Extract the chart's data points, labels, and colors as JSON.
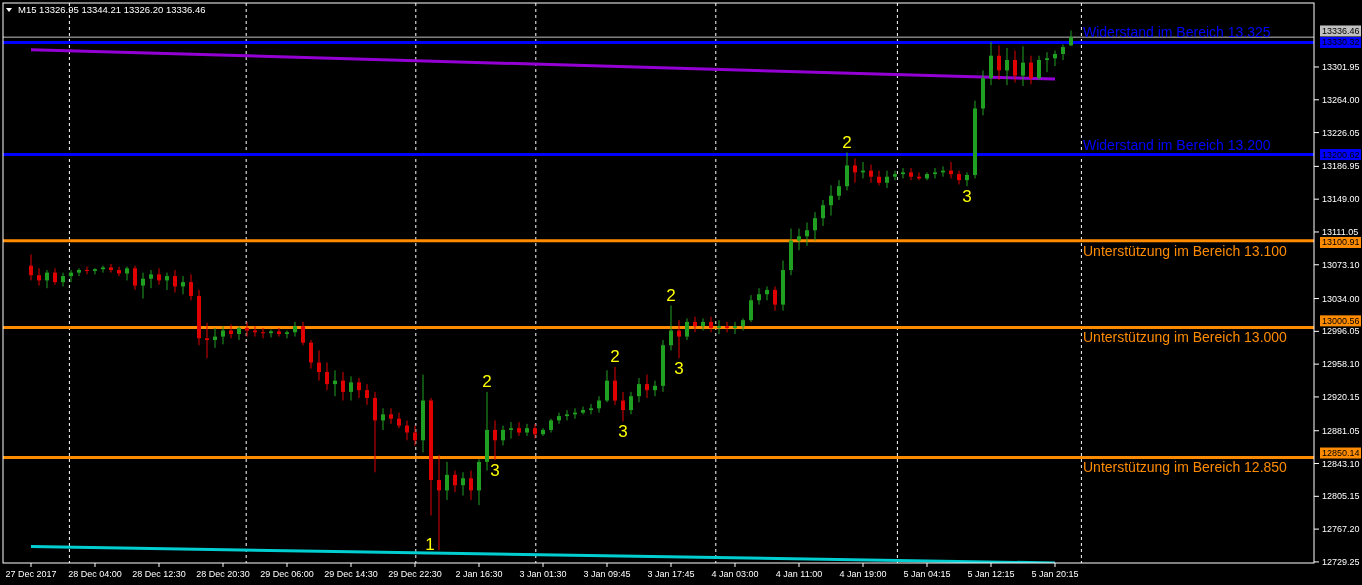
{
  "chart_data": {
    "type": "candlestick",
    "title": "M15 13326.95 13344.21 13326.20 13336.46",
    "categories": [
      "27 Dec 2017",
      null,
      null,
      null,
      null,
      null,
      null,
      null,
      "28 Dec 04:00",
      null,
      null,
      null,
      null,
      null,
      null,
      null,
      "28 Dec 12:30",
      null,
      null,
      null,
      null,
      null,
      null,
      null,
      "28 Dec 20:30",
      null,
      null,
      null,
      null,
      null,
      null,
      null,
      "29 Dec 06:00",
      null,
      null,
      null,
      null,
      null,
      null,
      null,
      "29 Dec 14:30",
      null,
      null,
      null,
      null,
      null,
      null,
      null,
      "29 Dec 22:30",
      null,
      null,
      null,
      null,
      null,
      null,
      null,
      "2 Jan 16:30",
      null,
      null,
      null,
      null,
      null,
      null,
      null,
      "3 Jan 01:30",
      null,
      null,
      null,
      null,
      null,
      null,
      null,
      "3 Jan 09:45",
      null,
      null,
      null,
      null,
      null,
      null,
      null,
      "3 Jan 17:45",
      null,
      null,
      null,
      null,
      null,
      null,
      null,
      "4 Jan 03:00",
      null,
      null,
      null,
      null,
      null,
      null,
      null,
      "4 Jan 11:00",
      null,
      null,
      null,
      null,
      null,
      null,
      null,
      "4 Jan 19:00",
      null,
      null,
      null,
      null,
      null,
      null,
      null,
      "5 Jan 04:15",
      null,
      null,
      null,
      null,
      null,
      null,
      null,
      "5 Jan 12:15",
      null,
      null,
      null,
      null,
      null,
      null,
      null,
      "5 Jan 20:15",
      null,
      null,
      null,
      null,
      null,
      null,
      null,
      null,
      null,
      null,
      null,
      null,
      null,
      null,
      null,
      null,
      null,
      null,
      null,
      null,
      null,
      null,
      null,
      null,
      null,
      null,
      null,
      null,
      null,
      null,
      null,
      null
    ],
    "ohlc": [
      [
        13072,
        13085,
        13055,
        13061
      ],
      [
        13061,
        13069,
        13049,
        13055
      ],
      [
        13055,
        13067,
        13046,
        13064
      ],
      [
        13064,
        13069,
        13050,
        13053
      ],
      [
        13053,
        13064,
        13048,
        13060
      ],
      [
        13060,
        13067,
        13053,
        13064
      ],
      [
        13064,
        13069,
        13060,
        13067
      ],
      [
        13067,
        13071,
        13062,
        13066
      ],
      [
        13066,
        13069,
        13062,
        13068
      ],
      [
        13068,
        13072,
        13064,
        13070
      ],
      [
        13070,
        13074,
        13064,
        13067
      ],
      [
        13067,
        13071,
        13060,
        13063
      ],
      [
        13063,
        13071,
        13055,
        13069
      ],
      [
        13069,
        13072,
        13044,
        13049
      ],
      [
        13049,
        13064,
        13034,
        13057
      ],
      [
        13057,
        13067,
        13046,
        13062
      ],
      [
        13062,
        13069,
        13050,
        13055
      ],
      [
        13055,
        13064,
        13044,
        13060
      ],
      [
        13060,
        13067,
        13041,
        13048
      ],
      [
        13048,
        13060,
        13039,
        13053
      ],
      [
        13053,
        13062,
        13032,
        13037
      ],
      [
        13037,
        13044,
        12980,
        12988
      ],
      [
        12988,
        13006,
        12965,
        12986
      ],
      [
        12986,
        13000,
        12977,
        12990
      ],
      [
        12990,
        13002,
        12981,
        12997
      ],
      [
        12997,
        13004,
        12988,
        12993
      ],
      [
        12993,
        13002,
        12986,
        13000
      ],
      [
        13000,
        13007,
        12990,
        12997
      ],
      [
        12997,
        13002,
        12990,
        12995
      ],
      [
        12995,
        13000,
        12988,
        12994
      ],
      [
        12994,
        12998,
        12989,
        12996
      ],
      [
        12996,
        13000,
        12990,
        12993
      ],
      [
        12993,
        12997,
        12988,
        12995
      ],
      [
        12995,
        13007,
        12990,
        13002
      ],
      [
        13002,
        13007,
        12980,
        12983
      ],
      [
        12983,
        12986,
        12953,
        12960
      ],
      [
        12960,
        12974,
        12939,
        12949
      ],
      [
        12949,
        12960,
        12928,
        12935
      ],
      [
        12935,
        12951,
        12921,
        12939
      ],
      [
        12939,
        12949,
        12916,
        12926
      ],
      [
        12926,
        12944,
        12916,
        12937
      ],
      [
        12937,
        12942,
        12919,
        12928
      ],
      [
        12928,
        12935,
        12911,
        12919
      ],
      [
        12919,
        12926,
        12833,
        12893
      ],
      [
        12893,
        12907,
        12882,
        12900
      ],
      [
        12900,
        12907,
        12889,
        12895
      ],
      [
        12895,
        12902,
        12884,
        12887
      ],
      [
        12887,
        12893,
        12870,
        12879
      ],
      [
        12879,
        12887,
        12864,
        12870
      ],
      [
        12870,
        12946,
        12856,
        12916
      ],
      [
        12916,
        12919,
        12783,
        12824
      ],
      [
        12824,
        12853,
        12743,
        12812
      ],
      [
        12812,
        12845,
        12801,
        12830
      ],
      [
        12830,
        12835,
        12810,
        12818
      ],
      [
        12818,
        12833,
        12806,
        12826
      ],
      [
        12826,
        12835,
        12801,
        12812
      ],
      [
        12812,
        12848,
        12795,
        12845
      ],
      [
        12845,
        12926,
        12835,
        12882
      ],
      [
        12882,
        12893,
        12847,
        12870
      ],
      [
        12870,
        12887,
        12864,
        12882
      ],
      [
        12882,
        12891,
        12872,
        12884
      ],
      [
        12884,
        12891,
        12875,
        12879
      ],
      [
        12879,
        12889,
        12875,
        12884
      ],
      [
        12884,
        12889,
        12872,
        12877
      ],
      [
        12877,
        12884,
        12875,
        12882
      ],
      [
        12882,
        12895,
        12879,
        12893
      ],
      [
        12893,
        12902,
        12889,
        12898
      ],
      [
        12898,
        12905,
        12893,
        12900
      ],
      [
        12900,
        12907,
        12895,
        12902
      ],
      [
        12902,
        12909,
        12900,
        12905
      ],
      [
        12905,
        12912,
        12900,
        12907
      ],
      [
        12907,
        12921,
        12902,
        12916
      ],
      [
        12916,
        12951,
        12914,
        12939
      ],
      [
        12939,
        12955,
        12911,
        12916
      ],
      [
        12916,
        12926,
        12892,
        12905
      ],
      [
        12905,
        12926,
        12900,
        12921
      ],
      [
        12921,
        12942,
        12914,
        12935
      ],
      [
        12935,
        12946,
        12919,
        12928
      ],
      [
        12928,
        12939,
        12921,
        12933
      ],
      [
        12933,
        12986,
        12926,
        12980
      ],
      [
        12980,
        13026,
        12974,
        12997
      ],
      [
        12997,
        13009,
        12965,
        12990
      ],
      [
        12990,
        13011,
        12986,
        13007
      ],
      [
        13007,
        13013,
        12995,
        13002
      ],
      [
        13002,
        13011,
        12997,
        13007
      ],
      [
        13007,
        13013,
        12995,
        13000
      ],
      [
        13000,
        13009,
        12993,
        13002
      ],
      [
        13002,
        13007,
        12995,
        13000
      ],
      [
        13000,
        13007,
        12993,
        13002
      ],
      [
        13002,
        13011,
        12997,
        13009
      ],
      [
        13009,
        13038,
        13007,
        13032
      ],
      [
        13032,
        13046,
        13027,
        13039
      ],
      [
        13039,
        13048,
        13032,
        13044
      ],
      [
        13044,
        13048,
        13020,
        13027
      ],
      [
        13027,
        13078,
        13020,
        13067
      ],
      [
        13067,
        13115,
        13061,
        13101
      ],
      [
        13101,
        13115,
        13090,
        13106
      ],
      [
        13106,
        13122,
        13095,
        13113
      ],
      [
        13113,
        13134,
        13101,
        13127
      ],
      [
        13127,
        13148,
        13118,
        13142
      ],
      [
        13142,
        13165,
        13130,
        13153
      ],
      [
        13153,
        13171,
        13148,
        13164
      ],
      [
        13164,
        13203,
        13159,
        13188
      ],
      [
        13188,
        13196,
        13168,
        13180
      ],
      [
        13180,
        13192,
        13173,
        13182
      ],
      [
        13182,
        13189,
        13168,
        13175
      ],
      [
        13175,
        13182,
        13165,
        13168
      ],
      [
        13168,
        13182,
        13162,
        13175
      ],
      [
        13175,
        13182,
        13171,
        13178
      ],
      [
        13178,
        13185,
        13173,
        13180
      ],
      [
        13180,
        13185,
        13171,
        13175
      ],
      [
        13175,
        13180,
        13171,
        13173
      ],
      [
        13173,
        13180,
        13171,
        13178
      ],
      [
        13178,
        13185,
        13173,
        13180
      ],
      [
        13180,
        13187,
        13175,
        13182
      ],
      [
        13182,
        13192,
        13173,
        13178
      ],
      [
        13178,
        13182,
        13166,
        13171
      ],
      [
        13171,
        13180,
        13164,
        13177
      ],
      [
        13177,
        13263,
        13173,
        13254
      ],
      [
        13254,
        13298,
        13246,
        13289
      ],
      [
        13289,
        13331,
        13281,
        13315
      ],
      [
        13315,
        13327,
        13287,
        13298
      ],
      [
        13298,
        13324,
        13281,
        13310
      ],
      [
        13310,
        13321,
        13284,
        13292
      ],
      [
        13292,
        13326,
        13280,
        13307
      ],
      [
        13307,
        13315,
        13282,
        13289
      ],
      [
        13289,
        13315,
        13287,
        13310
      ],
      [
        13310,
        13319,
        13296,
        13312
      ],
      [
        13312,
        13321,
        13303,
        13317
      ],
      [
        13317,
        13328,
        13310,
        13325
      ],
      [
        13326.95,
        13344.21,
        13326.2,
        13336.46
      ],
      null,
      null,
      null,
      null,
      null,
      null,
      null,
      null,
      null,
      null,
      null,
      null,
      null,
      null,
      null,
      null,
      null,
      null,
      null,
      null,
      null,
      null,
      null,
      null,
      null,
      null,
      null,
      null,
      null,
      null
    ],
    "colors": [
      "#e00000",
      "#e00000",
      "#20a020",
      "#e00000",
      "#20a020",
      "#20a020",
      "#20a020",
      "#e00000",
      "#20a020",
      "#20a020",
      "#e00000",
      "#e00000",
      "#20a020",
      "#e00000",
      "#20a020",
      "#20a020",
      "#e00000",
      "#20a020",
      "#e00000",
      "#20a020",
      "#e00000",
      "#e00000",
      "#e00000",
      "#20a020",
      "#20a020",
      "#e00000",
      "#20a020",
      "#e00000",
      "#e00000",
      "#e00000",
      "#20a020",
      "#e00000",
      "#20a020",
      "#20a020",
      "#e00000",
      "#e00000",
      "#e00000",
      "#e00000",
      "#20a020",
      "#e00000",
      "#20a020",
      "#e00000",
      "#e00000",
      "#e00000",
      "#20a020",
      "#e00000",
      "#e00000",
      "#e00000",
      "#e00000",
      "#20a020",
      "#e00000",
      "#e00000",
      "#20a020",
      "#e00000",
      "#20a020",
      "#e00000",
      "#20a020",
      "#20a020",
      "#e00000",
      "#20a020",
      "#20a020",
      "#e00000",
      "#20a020",
      "#e00000",
      "#20a020",
      "#20a020",
      "#20a020",
      "#20a020",
      "#20a020",
      "#20a020",
      "#20a020",
      "#20a020",
      "#20a020",
      "#e00000",
      "#e00000",
      "#20a020",
      "#20a020",
      "#e00000",
      "#20a020",
      "#20a020",
      "#20a020",
      "#e00000",
      "#20a020",
      "#e00000",
      "#20a020",
      "#e00000",
      "#20a020",
      "#e00000",
      "#20a020",
      "#20a020",
      "#20a020",
      "#20a020",
      "#20a020",
      "#e00000",
      "#20a020",
      "#20a020",
      "#20a020",
      "#20a020",
      "#20a020",
      "#20a020",
      "#20a020",
      "#20a020",
      "#20a020",
      "#e00000",
      "#20a020",
      "#e00000",
      "#e00000",
      "#20a020",
      "#20a020",
      "#20a020",
      "#e00000",
      "#e00000",
      "#20a020",
      "#20a020",
      "#20a020",
      "#e00000",
      "#e00000",
      "#20a020",
      "#20a020",
      "#20a020",
      "#20a020",
      "#e00000",
      "#20a020",
      "#e00000",
      "#20a020",
      "#e00000",
      "#20a020",
      "#20a020",
      "#20a020",
      "#20a020",
      "#20a020",
      null,
      null,
      null,
      null,
      null,
      null,
      null,
      null,
      null,
      null,
      null,
      null,
      null,
      null,
      null,
      null,
      null,
      null,
      null,
      null,
      null,
      null,
      null,
      null,
      null,
      null,
      null,
      null,
      null,
      null
    ],
    "series": [
      {
        "type": "line",
        "color": "#9400d3",
        "x": [
          "27 Dec 2017",
          "5 Jan 20:15"
        ],
        "values": [
          13322,
          13288
        ]
      },
      {
        "type": "line",
        "color": "#00ced1",
        "x": [
          "27 Dec 2017",
          "5 Jan 20:15"
        ],
        "values": [
          12747,
          12728
        ]
      }
    ],
    "ylim": [
      12728,
      13376
    ],
    "yticks": [
      13301.95,
      {
        "value": 13264,
        "label": "13264.00"
      },
      13226.05,
      13186.95,
      {
        "value": 13149,
        "label": "13149.00"
      },
      13111.05,
      {
        "value": 13073.1,
        "label": "13073.10"
      },
      {
        "value": 13034,
        "label": "13034.00"
      },
      12996.05,
      {
        "value": 12958.1,
        "label": "12958.10"
      },
      12920.15,
      12881.05,
      {
        "value": 12843.1,
        "label": "12843.10"
      },
      12805.15,
      {
        "value": 12767.2,
        "label": "12767.20"
      },
      12729.25
    ],
    "ref_lines": [
      {
        "axis": "y",
        "value": 13330.32,
        "label": "13330.32",
        "color": "#0000ff"
      },
      {
        "axis": "y",
        "value": 13200.62,
        "label": "13200.62",
        "color": "#0000ff"
      },
      {
        "axis": "y",
        "value": 13100.91,
        "label": "13100.91",
        "color": "#ff8c00"
      },
      {
        "axis": "y",
        "value": 13000.56,
        "label": "13000.56",
        "color": "#ff8c00"
      },
      {
        "axis": "y",
        "value": 12850.14,
        "label": "12850.14",
        "color": "#ff8c00"
      },
      {
        "axis": "y",
        "value": 13336.46,
        "label": "13336.46",
        "color": "#c0c0c0"
      }
    ],
    "annotations": [
      {
        "text": "Widerstand im Bereich 13.325",
        "y": 13330.32
      },
      {
        "text": "Widerstand im Bereich 13.200",
        "y": 13200.62
      },
      {
        "text": "Unterstützung im Bereich 13.100",
        "y": 13100.91
      },
      {
        "text": "Unterstützung im Bereich 13.000",
        "y": 13000.56
      },
      {
        "text": "Unterstützung im Bereich 12.850",
        "y": 12850.14
      },
      {
        "text": "1",
        "y": 12743
      },
      {
        "text": "2",
        "y": 12926
      },
      {
        "text": "3",
        "y": 12847
      },
      {
        "text": "2",
        "y": 12955
      },
      {
        "text": "3",
        "y": 12892
      },
      {
        "text": "2",
        "y": 13026
      },
      {
        "text": "3",
        "y": 12965
      },
      {
        "text": "2",
        "y": 13203
      },
      {
        "text": "3",
        "y": 13164
      }
    ]
  }
}
